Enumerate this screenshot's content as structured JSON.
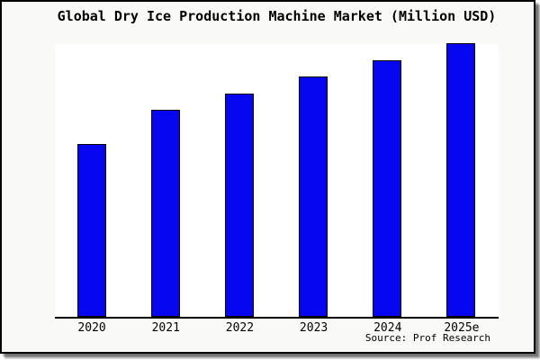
{
  "card": {
    "background": "#f9f9f7",
    "border_color": "#000000"
  },
  "chart_data": {
    "type": "bar",
    "title": "Global Dry Ice Production Machine Market (Million USD)",
    "categories": [
      "2020",
      "2021",
      "2022",
      "2023",
      "2024",
      "2025e"
    ],
    "values": [
      62.9,
      75.5,
      81.5,
      87.7,
      93.7,
      100
    ],
    "values_unit": "relative height, % of tallest bar (no y-axis scale shown in image)",
    "xlabel": "",
    "ylabel": "",
    "ylim": [
      0,
      100
    ],
    "grid": false,
    "legend": null,
    "bar_color": "#0606f0",
    "bar_border_color": "#000000",
    "source_text": "Source: Prof Research"
  }
}
